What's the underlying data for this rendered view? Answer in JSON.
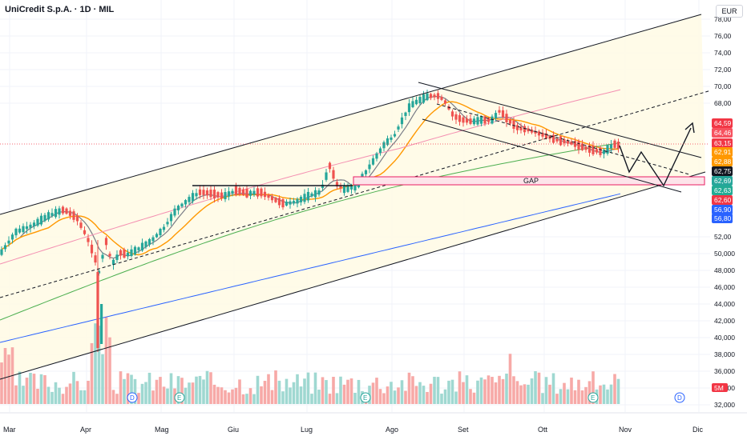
{
  "header": {
    "title": "UniCredit S.p.A. · 1D · MIL",
    "currency": "EUR"
  },
  "chart_data": {
    "type": "candlestick",
    "x_tick_labels": [
      "Mar",
      "Apr",
      "Mag",
      "Giu",
      "Lug",
      "Ago",
      "Set",
      "Ott",
      "Nov",
      "Dic"
    ],
    "y_tick_labels": [
      "78,00",
      "76,00",
      "74,00",
      "72,00",
      "70,00",
      "68,00",
      "52,00",
      "50,000",
      "48,000",
      "46,000",
      "44,000",
      "42,000",
      "40,000",
      "38,000",
      "36,000",
      "34,000",
      "32,000"
    ],
    "ylim": [
      31.5,
      79
    ],
    "price_tags": [
      {
        "label": "64,59",
        "value": 64.59,
        "color": "#f23645"
      },
      {
        "label": "64,46",
        "value": 64.46,
        "color": "#f7525f"
      },
      {
        "label": "63,15",
        "value": 63.15,
        "color": "#f23645"
      },
      {
        "label": "62,91",
        "value": 62.91,
        "color": "#ff9800"
      },
      {
        "label": "62,88",
        "value": 62.88,
        "color": "#ff9800"
      },
      {
        "label": "62,75",
        "value": 62.75,
        "color": "#131722"
      },
      {
        "label": "62,69",
        "value": 62.69,
        "color": "#26a69a"
      },
      {
        "label": "62,63",
        "value": 62.63,
        "color": "#22ab94"
      },
      {
        "label": "62,60",
        "value": 62.6,
        "color": "#f23645"
      },
      {
        "label": "56,90",
        "value": 56.9,
        "color": "#2962ff"
      },
      {
        "label": "56,80",
        "value": 56.8,
        "color": "#2962ff"
      }
    ],
    "volume_tag": "5M",
    "gap_label": "GAP",
    "event_markers": [
      "D",
      "E",
      "E",
      "E",
      "D"
    ],
    "annotations": {
      "resistance_level": 61.0,
      "gap_zone": [
        61.0,
        61.6
      ]
    },
    "colors": {
      "up": "#26a69a",
      "down": "#ef5350",
      "ma_fast": "#787b86",
      "ma_mid": "#ff9800",
      "ma_slow": "#4caf50",
      "ma_long": "#2962ff",
      "channel_fill": "#fffbe6"
    }
  }
}
